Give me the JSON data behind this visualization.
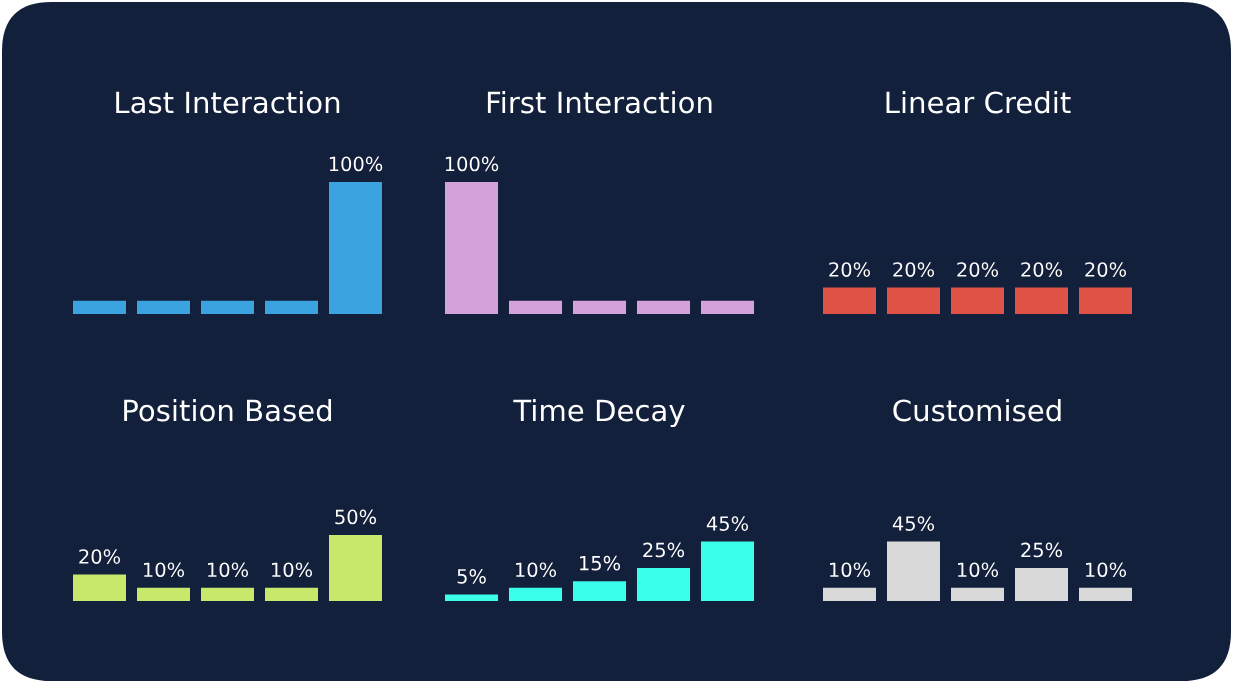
{
  "chart_data": [
    {
      "type": "bar",
      "title": "Last Interaction",
      "categories": [
        null,
        null,
        null,
        null,
        null
      ],
      "values": [
        10,
        10,
        10,
        10,
        100
      ],
      "value_labels": [
        null,
        null,
        null,
        null,
        "100%"
      ],
      "color": "#3ba3e0"
    },
    {
      "type": "bar",
      "title": "First Interaction",
      "categories": [
        null,
        null,
        null,
        null,
        null
      ],
      "values": [
        100,
        10,
        10,
        10,
        10
      ],
      "value_labels": [
        "100%",
        null,
        null,
        null,
        null
      ],
      "color": "#d4a1db"
    },
    {
      "type": "bar",
      "title": "Linear Credit",
      "categories": [
        null,
        null,
        null,
        null,
        null
      ],
      "values": [
        20,
        20,
        20,
        20,
        20
      ],
      "value_labels": [
        "20%",
        "20%",
        "20%",
        "20%",
        "20%"
      ],
      "color": "#e05246"
    },
    {
      "type": "bar",
      "title": "Position Based",
      "categories": [
        null,
        null,
        null,
        null,
        null
      ],
      "values": [
        20,
        10,
        10,
        10,
        50
      ],
      "value_labels": [
        "20%",
        "10%",
        "10%",
        "10%",
        "50%"
      ],
      "color": "#c8e86b"
    },
    {
      "type": "bar",
      "title": "Time Decay",
      "categories": [
        null,
        null,
        null,
        null,
        null
      ],
      "values": [
        5,
        10,
        15,
        25,
        45
      ],
      "value_labels": [
        "5%",
        "10%",
        "15%",
        "25%",
        "45%"
      ],
      "color": "#3affe9"
    },
    {
      "type": "bar",
      "title": "Customised",
      "categories": [
        null,
        null,
        null,
        null,
        null
      ],
      "values": [
        10,
        45,
        10,
        25,
        10
      ],
      "value_labels": [
        "10%",
        "45%",
        "10%",
        "25%",
        "10%"
      ],
      "color": "#d9d9d9"
    }
  ]
}
